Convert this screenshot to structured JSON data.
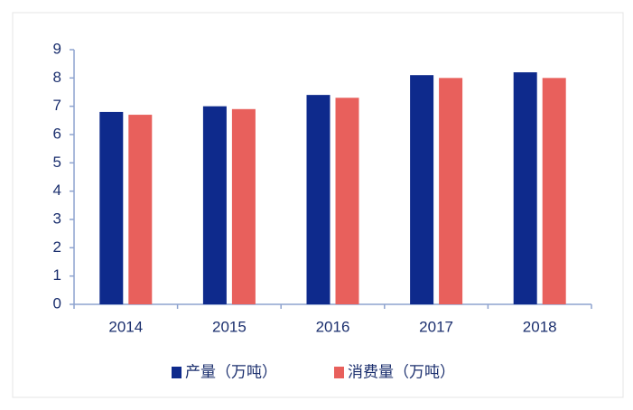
{
  "chart_data": {
    "type": "bar",
    "categories": [
      "2014",
      "2015",
      "2016",
      "2017",
      "2018"
    ],
    "series": [
      {
        "name": "产量（万吨）",
        "color": "#0e2a8c",
        "values": [
          6.8,
          7.0,
          7.4,
          8.1,
          8.2
        ]
      },
      {
        "name": "消费量（万吨）",
        "color": "#e8605c",
        "values": [
          6.7,
          6.9,
          7.3,
          8.0,
          8.0
        ]
      }
    ],
    "ylim": [
      0,
      9
    ],
    "yticks": [
      0,
      1,
      2,
      3,
      4,
      5,
      6,
      7,
      8,
      9
    ],
    "grid": false,
    "legend": "bottom"
  }
}
